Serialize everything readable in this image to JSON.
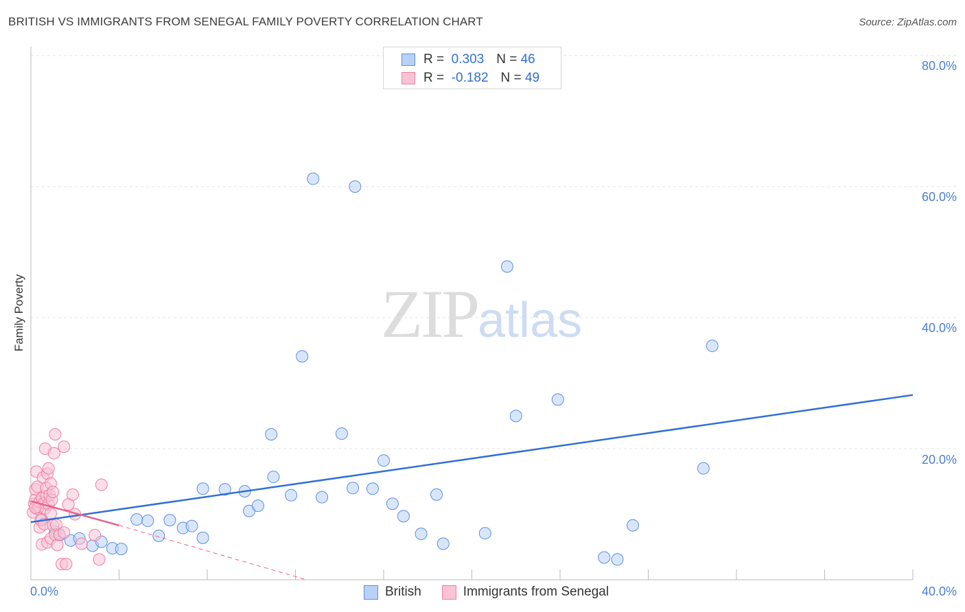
{
  "title": "BRITISH VS IMMIGRANTS FROM SENEGAL FAMILY POVERTY CORRELATION CHART",
  "source": "Source: ZipAtlas.com",
  "watermark": {
    "zip": "ZIP",
    "atlas": "atlas"
  },
  "legend": {
    "r_label": "R =",
    "n_label": "N =",
    "british": {
      "r": "0.303",
      "n": "46"
    },
    "senegal": {
      "r": "-0.182",
      "n": "49"
    }
  },
  "chart_data": {
    "type": "scatter",
    "title": "BRITISH VS IMMIGRANTS FROM SENEGAL FAMILY POVERTY CORRELATION CHART",
    "xlabel": "",
    "ylabel": "Family Poverty",
    "xlim": [
      0,
      40
    ],
    "ylim": [
      0,
      82
    ],
    "x_tick_labels": [
      "0.0%",
      "40.0%"
    ],
    "y_ticks": [
      20,
      40,
      60,
      80
    ],
    "y_tick_labels": [
      "20.0%",
      "40.0%",
      "60.0%",
      "80.0%"
    ],
    "colors": {
      "british": "#5b8fe0",
      "british_fill": "#b9d1f4",
      "senegal": "#ee7fa3",
      "senegal_fill": "#f8c3d5",
      "british_line": "#2f6fd8",
      "senegal_line": "#e8628f"
    },
    "series": [
      {
        "name": "British",
        "points": [
          [
            0.5,
            9.2
          ],
          [
            1.1,
            7.3
          ],
          [
            1.3,
            6.8
          ],
          [
            1.8,
            6.0
          ],
          [
            2.2,
            6.3
          ],
          [
            2.8,
            5.2
          ],
          [
            3.2,
            5.8
          ],
          [
            3.7,
            4.8
          ],
          [
            4.1,
            4.7
          ],
          [
            4.8,
            9.2
          ],
          [
            5.3,
            9.0
          ],
          [
            5.8,
            6.7
          ],
          [
            6.3,
            9.1
          ],
          [
            6.9,
            7.9
          ],
          [
            7.3,
            8.2
          ],
          [
            7.8,
            6.4
          ],
          [
            7.8,
            13.9
          ],
          [
            8.8,
            13.8
          ],
          [
            9.9,
            10.5
          ],
          [
            9.7,
            13.5
          ],
          [
            10.3,
            11.3
          ],
          [
            10.9,
            22.2
          ],
          [
            11.0,
            15.7
          ],
          [
            11.8,
            12.9
          ],
          [
            12.3,
            34.1
          ],
          [
            12.8,
            61.2
          ],
          [
            13.2,
            12.6
          ],
          [
            14.1,
            22.3
          ],
          [
            14.6,
            14.0
          ],
          [
            14.7,
            60.0
          ],
          [
            15.5,
            13.9
          ],
          [
            16.0,
            18.2
          ],
          [
            16.4,
            11.6
          ],
          [
            16.9,
            9.7
          ],
          [
            17.7,
            7.0
          ],
          [
            18.4,
            13.0
          ],
          [
            18.7,
            5.5
          ],
          [
            20.6,
            7.1
          ],
          [
            21.6,
            47.8
          ],
          [
            22.0,
            25.0
          ],
          [
            23.9,
            27.5
          ],
          [
            26.0,
            3.4
          ],
          [
            26.6,
            3.1
          ],
          [
            27.3,
            8.3
          ],
          [
            30.5,
            17.0
          ],
          [
            30.9,
            35.7
          ]
        ]
      },
      {
        "name": "Immigrants from Senegal",
        "points": [
          [
            0.1,
            10.3
          ],
          [
            0.15,
            11.6
          ],
          [
            0.2,
            12.2
          ],
          [
            0.2,
            13.8
          ],
          [
            0.25,
            16.5
          ],
          [
            0.3,
            10.8
          ],
          [
            0.3,
            14.2
          ],
          [
            0.35,
            11.1
          ],
          [
            0.4,
            8.0
          ],
          [
            0.4,
            11.9
          ],
          [
            0.45,
            9.1
          ],
          [
            0.5,
            5.4
          ],
          [
            0.5,
            12.5
          ],
          [
            0.55,
            15.6
          ],
          [
            0.6,
            8.5
          ],
          [
            0.6,
            11.7
          ],
          [
            0.65,
            10.9
          ],
          [
            0.65,
            20.0
          ],
          [
            0.7,
            12.8
          ],
          [
            0.7,
            14.0
          ],
          [
            0.75,
            5.7
          ],
          [
            0.75,
            16.2
          ],
          [
            0.8,
            17.0
          ],
          [
            0.8,
            11.5
          ],
          [
            0.85,
            12.9
          ],
          [
            0.9,
            6.3
          ],
          [
            0.9,
            10.1
          ],
          [
            0.9,
            14.7
          ],
          [
            0.95,
            12.2
          ],
          [
            1.0,
            8.3
          ],
          [
            1.0,
            13.4
          ],
          [
            1.05,
            19.3
          ],
          [
            1.1,
            22.2
          ],
          [
            1.1,
            6.9
          ],
          [
            1.15,
            8.4
          ],
          [
            1.2,
            5.3
          ],
          [
            1.3,
            6.9
          ],
          [
            1.4,
            2.4
          ],
          [
            1.5,
            7.2
          ],
          [
            1.5,
            20.3
          ],
          [
            1.6,
            2.4
          ],
          [
            1.7,
            11.5
          ],
          [
            1.9,
            13.0
          ],
          [
            2.0,
            10.0
          ],
          [
            2.3,
            5.5
          ],
          [
            2.9,
            6.8
          ],
          [
            3.1,
            3.1
          ],
          [
            3.2,
            14.5
          ],
          [
            0.2,
            11.0
          ]
        ]
      }
    ],
    "trend_lines": [
      {
        "series": "British",
        "x": [
          0,
          40
        ],
        "y": [
          8.8,
          28.2
        ],
        "style": "solid"
      },
      {
        "series": "Immigrants from Senegal",
        "x": [
          0,
          4.0
        ],
        "y": [
          12.0,
          8.3
        ],
        "style": "solid"
      },
      {
        "series": "Immigrants from Senegal",
        "x": [
          4.0,
          12.5
        ],
        "y": [
          8.3,
          0.0
        ],
        "style": "dashed"
      }
    ]
  }
}
